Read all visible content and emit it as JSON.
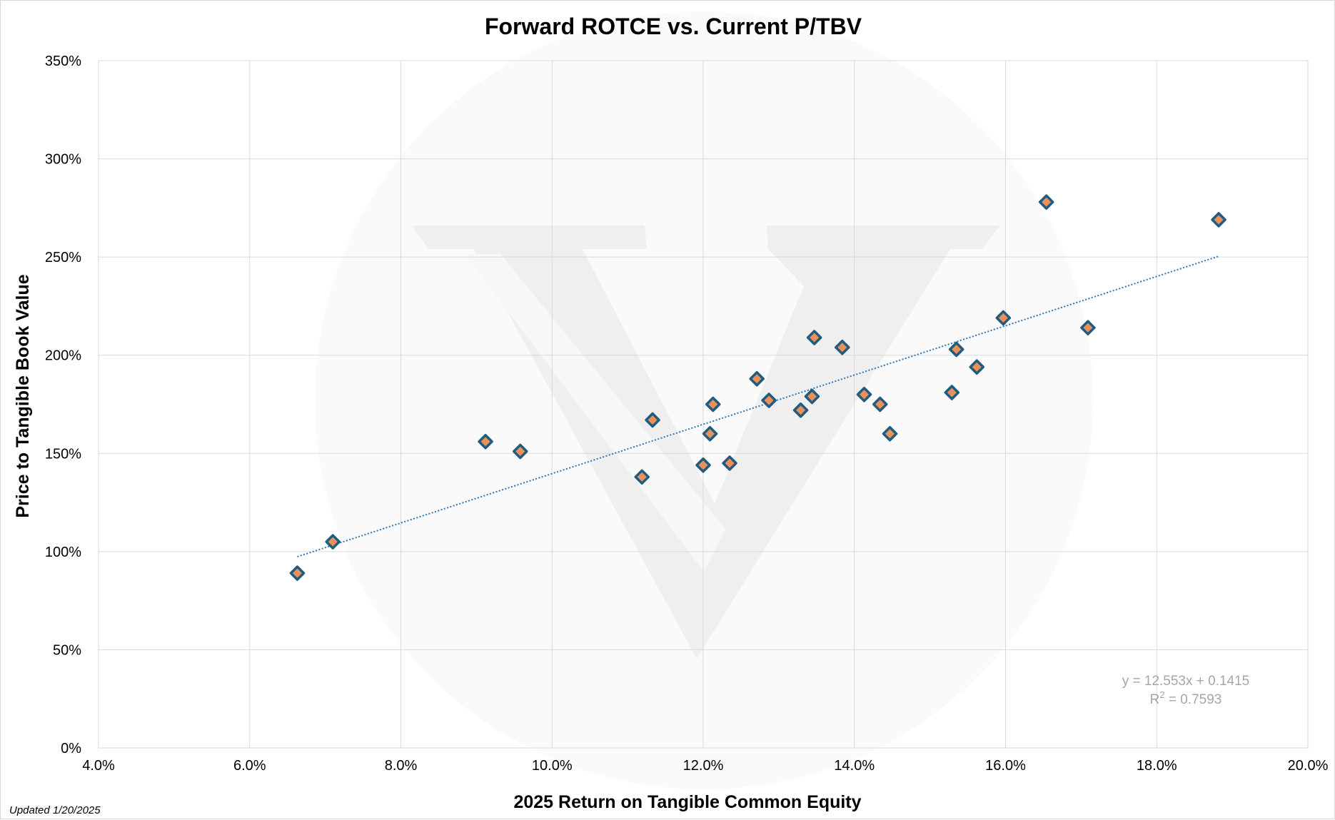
{
  "footer": {
    "updated_note": "Updated 1/20/2025"
  },
  "colors": {
    "marker_fill": "#E8915B",
    "marker_stroke": "#1F5C80",
    "trendline": "#2E75B6",
    "gridline": "#D9D9D9",
    "equation_text": "#A6A6A6",
    "watermark": "#EFEFEF"
  },
  "chart_data": {
    "type": "scatter",
    "title": "Forward ROTCE vs. Current P/TBV",
    "xlabel": "2025 Return on Tangible Common Equity",
    "ylabel": "Price to Tangible Book Value",
    "xlim": [
      0.04,
      0.2
    ],
    "ylim": [
      0,
      3.5
    ],
    "x_ticks": [
      0.04,
      0.06,
      0.08,
      0.1,
      0.12,
      0.14,
      0.16,
      0.18,
      0.2
    ],
    "x_tick_labels": [
      "4.0%",
      "6.0%",
      "8.0%",
      "10.0%",
      "12.0%",
      "14.0%",
      "16.0%",
      "18.0%",
      "20.0%"
    ],
    "y_ticks": [
      0,
      0.5,
      1.0,
      1.5,
      2.0,
      2.5,
      3.0,
      3.5
    ],
    "y_tick_labels": [
      "0%",
      "50%",
      "100%",
      "150%",
      "200%",
      "250%",
      "300%",
      "350%"
    ],
    "grid": true,
    "legend": "none",
    "marker": "diamond",
    "points": [
      {
        "x": 0.0663,
        "y": 0.89
      },
      {
        "x": 0.071,
        "y": 1.05
      },
      {
        "x": 0.0912,
        "y": 1.56
      },
      {
        "x": 0.0958,
        "y": 1.51
      },
      {
        "x": 0.1119,
        "y": 1.38
      },
      {
        "x": 0.1133,
        "y": 1.67
      },
      {
        "x": 0.12,
        "y": 1.44
      },
      {
        "x": 0.1209,
        "y": 1.6
      },
      {
        "x": 0.1213,
        "y": 1.75
      },
      {
        "x": 0.1235,
        "y": 1.45
      },
      {
        "x": 0.1271,
        "y": 1.88
      },
      {
        "x": 0.1287,
        "y": 1.77
      },
      {
        "x": 0.1329,
        "y": 1.72
      },
      {
        "x": 0.1344,
        "y": 1.79
      },
      {
        "x": 0.1347,
        "y": 2.09
      },
      {
        "x": 0.1384,
        "y": 2.04
      },
      {
        "x": 0.1413,
        "y": 1.8
      },
      {
        "x": 0.1434,
        "y": 1.75
      },
      {
        "x": 0.1447,
        "y": 1.6
      },
      {
        "x": 0.1529,
        "y": 1.81
      },
      {
        "x": 0.1535,
        "y": 2.03
      },
      {
        "x": 0.1562,
        "y": 1.94
      },
      {
        "x": 0.1597,
        "y": 2.19
      },
      {
        "x": 0.1654,
        "y": 2.78
      },
      {
        "x": 0.1709,
        "y": 2.14
      },
      {
        "x": 0.1882,
        "y": 2.69
      }
    ],
    "trendline": {
      "type": "linear",
      "slope": 12.553,
      "intercept": 0.1415,
      "r_squared": 0.7593,
      "x_start": 0.0663,
      "x_end": 0.1882,
      "equation_label": "y = 12.553x + 0.1415",
      "r2_label_prefix": "R",
      "r2_label_sup": "2",
      "r2_label_suffix": " = 0.7593"
    }
  }
}
